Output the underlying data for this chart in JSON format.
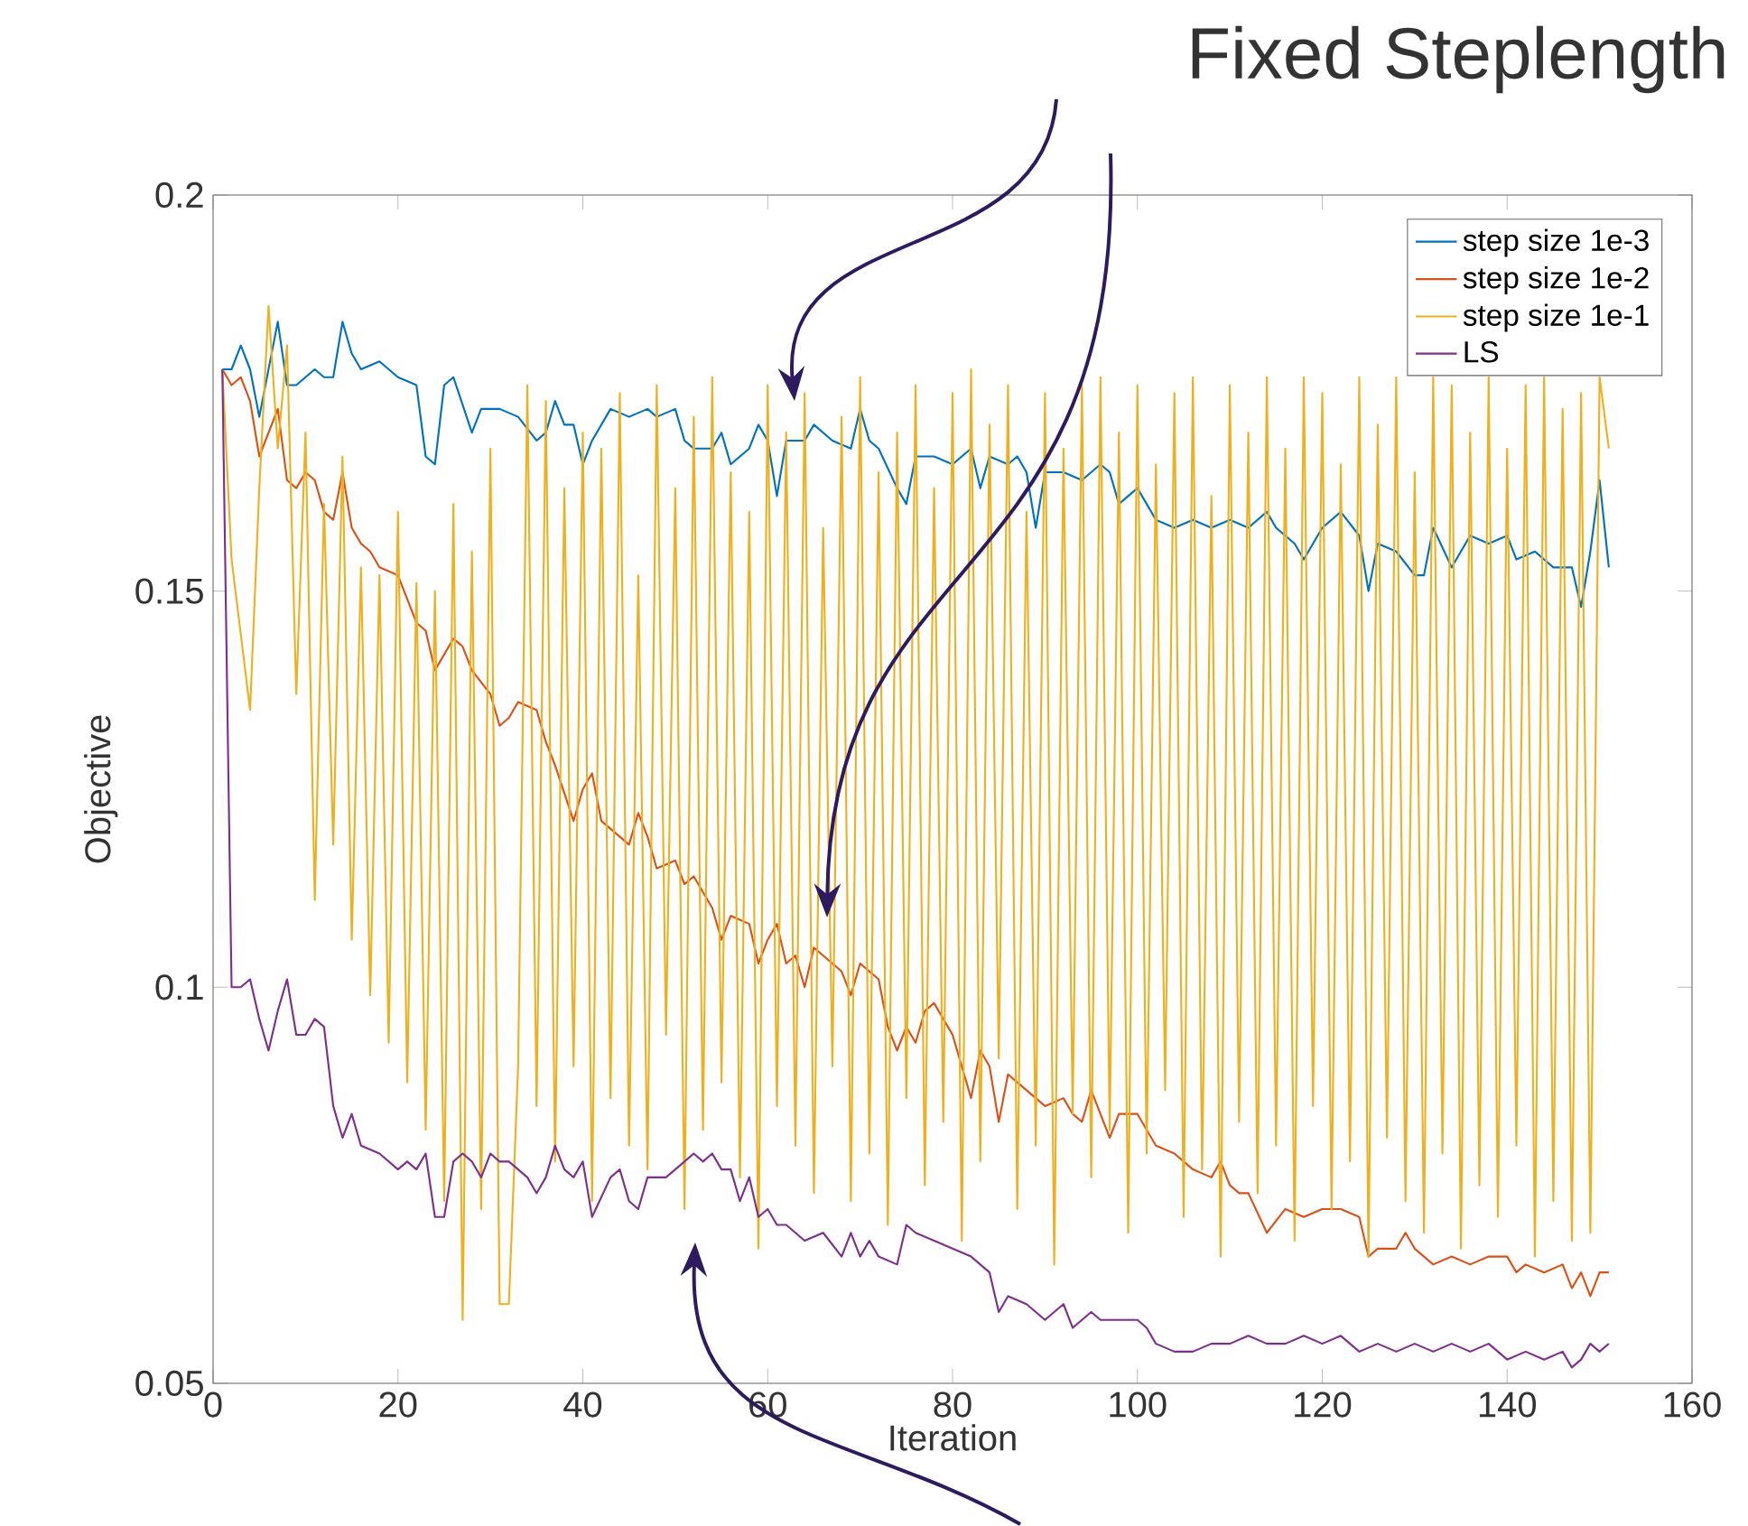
{
  "chart_data": {
    "type": "line",
    "xlabel": "Iteration",
    "ylabel": "Objective",
    "annotations": [
      "Fixed Steplength"
    ],
    "xlim": [
      0,
      160
    ],
    "ylim": [
      0.05,
      0.2
    ],
    "xticks": [
      0,
      20,
      40,
      60,
      80,
      100,
      120,
      140,
      160
    ],
    "yticks": [
      0.05,
      0.1,
      0.15,
      0.2
    ],
    "grid": false,
    "legend": "top right",
    "marker": "none",
    "line_style": "solid",
    "series": [
      {
        "name": "step size 1e-3",
        "color": "#0072bd",
        "x": [
          1,
          2,
          3,
          4,
          5,
          6,
          7,
          8,
          9,
          10,
          11,
          12,
          13,
          14,
          15,
          16,
          18,
          20,
          22,
          23,
          24,
          25,
          26,
          28,
          29,
          31,
          33,
          35,
          36,
          37,
          38,
          39,
          40,
          41,
          43,
          45,
          47,
          48,
          50,
          51,
          52,
          54,
          55,
          56,
          58,
          59,
          60,
          61,
          62,
          64,
          65,
          67,
          69,
          70,
          71,
          72,
          74,
          75,
          76,
          78,
          80,
          82,
          83,
          84,
          86,
          87,
          88,
          89,
          90,
          92,
          94,
          96,
          97,
          98,
          100,
          102,
          104,
          106,
          108,
          110,
          112,
          114,
          115,
          117,
          118,
          120,
          122,
          124,
          125,
          126,
          128,
          130,
          131,
          132,
          134,
          136,
          138,
          140,
          141,
          143,
          145,
          147,
          148,
          149,
          150,
          151
        ],
        "values": [
          0.178,
          0.178,
          0.181,
          0.178,
          0.172,
          0.178,
          0.184,
          0.176,
          0.176,
          0.177,
          0.178,
          0.177,
          0.177,
          0.184,
          0.18,
          0.178,
          0.179,
          0.177,
          0.176,
          0.167,
          0.166,
          0.176,
          0.177,
          0.17,
          0.173,
          0.173,
          0.172,
          0.169,
          0.17,
          0.174,
          0.171,
          0.171,
          0.166,
          0.169,
          0.173,
          0.172,
          0.173,
          0.172,
          0.173,
          0.169,
          0.168,
          0.168,
          0.17,
          0.166,
          0.168,
          0.171,
          0.169,
          0.162,
          0.169,
          0.169,
          0.171,
          0.169,
          0.168,
          0.173,
          0.169,
          0.168,
          0.163,
          0.161,
          0.167,
          0.167,
          0.166,
          0.168,
          0.163,
          0.167,
          0.166,
          0.167,
          0.165,
          0.158,
          0.165,
          0.165,
          0.164,
          0.166,
          0.165,
          0.161,
          0.163,
          0.159,
          0.158,
          0.159,
          0.158,
          0.159,
          0.158,
          0.16,
          0.158,
          0.156,
          0.154,
          0.158,
          0.16,
          0.157,
          0.15,
          0.156,
          0.155,
          0.152,
          0.152,
          0.158,
          0.153,
          0.157,
          0.156,
          0.157,
          0.154,
          0.155,
          0.153,
          0.153,
          0.148,
          0.155,
          0.164,
          0.153
        ]
      },
      {
        "name": "step size 1e-2",
        "color": "#d95319",
        "x": [
          1,
          2,
          3,
          4,
          5,
          6,
          7,
          8,
          9,
          10,
          11,
          12,
          13,
          14,
          15,
          16,
          17,
          18,
          20,
          22,
          23,
          24,
          26,
          27,
          28,
          30,
          31,
          32,
          33,
          35,
          36,
          37,
          39,
          40,
          41,
          42,
          44,
          45,
          46,
          47,
          48,
          50,
          51,
          52,
          54,
          55,
          56,
          58,
          59,
          60,
          61,
          62,
          63,
          64,
          65,
          67,
          68,
          69,
          70,
          72,
          73,
          74,
          75,
          76,
          77,
          78,
          80,
          82,
          83,
          84,
          85,
          86,
          87,
          88,
          90,
          92,
          93,
          94,
          95,
          96,
          97,
          98,
          100,
          101,
          102,
          104,
          106,
          108,
          109,
          110,
          111,
          112,
          114,
          116,
          118,
          120,
          122,
          124,
          125,
          126,
          128,
          129,
          130,
          132,
          134,
          136,
          138,
          140,
          141,
          142,
          144,
          146,
          147,
          148,
          149,
          150,
          151
        ],
        "values": [
          0.178,
          0.176,
          0.177,
          0.174,
          0.167,
          0.17,
          0.173,
          0.164,
          0.163,
          0.165,
          0.164,
          0.16,
          0.159,
          0.165,
          0.158,
          0.156,
          0.155,
          0.153,
          0.152,
          0.146,
          0.145,
          0.14,
          0.144,
          0.143,
          0.14,
          0.137,
          0.133,
          0.134,
          0.136,
          0.135,
          0.131,
          0.128,
          0.121,
          0.125,
          0.127,
          0.121,
          0.119,
          0.118,
          0.122,
          0.119,
          0.115,
          0.116,
          0.113,
          0.114,
          0.11,
          0.106,
          0.109,
          0.108,
          0.103,
          0.106,
          0.108,
          0.103,
          0.104,
          0.1,
          0.105,
          0.103,
          0.102,
          0.099,
          0.103,
          0.101,
          0.095,
          0.092,
          0.095,
          0.093,
          0.097,
          0.098,
          0.094,
          0.086,
          0.092,
          0.09,
          0.083,
          0.089,
          0.088,
          0.087,
          0.085,
          0.086,
          0.084,
          0.083,
          0.087,
          0.084,
          0.081,
          0.084,
          0.084,
          0.082,
          0.08,
          0.079,
          0.077,
          0.076,
          0.078,
          0.075,
          0.074,
          0.074,
          0.069,
          0.072,
          0.071,
          0.072,
          0.072,
          0.071,
          0.066,
          0.067,
          0.067,
          0.069,
          0.067,
          0.065,
          0.066,
          0.065,
          0.066,
          0.066,
          0.064,
          0.065,
          0.064,
          0.065,
          0.062,
          0.064,
          0.061,
          0.064,
          0.064
        ]
      },
      {
        "name": "step size 1e-1",
        "color": "#edb120",
        "x": [
          1,
          2,
          4,
          5,
          6,
          7,
          8,
          9,
          10,
          11,
          12,
          13,
          14,
          15,
          16,
          17,
          18,
          19,
          20,
          21,
          22,
          23,
          24,
          25,
          26,
          27,
          28,
          29,
          30,
          31,
          32,
          33,
          34,
          35,
          36,
          37,
          38,
          39,
          40,
          41,
          42,
          43,
          44,
          45,
          46,
          47,
          48,
          49,
          50,
          51,
          52,
          53,
          54,
          55,
          56,
          57,
          58,
          59,
          60,
          61,
          62,
          63,
          64,
          65,
          66,
          67,
          68,
          69,
          70,
          71,
          72,
          73,
          74,
          75,
          76,
          77,
          78,
          79,
          80,
          81,
          82,
          83,
          84,
          85,
          86,
          87,
          88,
          89,
          90,
          91,
          92,
          93,
          94,
          95,
          96,
          97,
          98,
          99,
          100,
          101,
          102,
          103,
          104,
          105,
          106,
          107,
          108,
          109,
          110,
          111,
          112,
          113,
          114,
          115,
          116,
          117,
          118,
          119,
          120,
          121,
          122,
          123,
          124,
          125,
          126,
          127,
          128,
          129,
          130,
          131,
          132,
          133,
          134,
          135,
          136,
          137,
          138,
          139,
          140,
          141,
          142,
          143,
          144,
          145,
          146,
          147,
          148,
          149,
          150,
          151
        ],
        "values": [
          0.178,
          0.154,
          0.135,
          0.163,
          0.186,
          0.168,
          0.181,
          0.137,
          0.17,
          0.111,
          0.161,
          0.118,
          0.167,
          0.106,
          0.153,
          0.099,
          0.152,
          0.093,
          0.16,
          0.088,
          0.151,
          0.082,
          0.15,
          0.073,
          0.161,
          0.058,
          0.155,
          0.072,
          0.168,
          0.06,
          0.06,
          0.09,
          0.176,
          0.085,
          0.174,
          0.078,
          0.163,
          0.09,
          0.17,
          0.073,
          0.168,
          0.086,
          0.175,
          0.08,
          0.152,
          0.077,
          0.176,
          0.094,
          0.163,
          0.072,
          0.172,
          0.082,
          0.177,
          0.088,
          0.165,
          0.076,
          0.16,
          0.067,
          0.176,
          0.085,
          0.17,
          0.08,
          0.175,
          0.074,
          0.158,
          0.09,
          0.172,
          0.073,
          0.177,
          0.079,
          0.165,
          0.07,
          0.17,
          0.086,
          0.176,
          0.075,
          0.163,
          0.083,
          0.175,
          0.068,
          0.178,
          0.078,
          0.171,
          0.091,
          0.176,
          0.072,
          0.16,
          0.08,
          0.175,
          0.065,
          0.168,
          0.084,
          0.176,
          0.076,
          0.177,
          0.082,
          0.17,
          0.069,
          0.176,
          0.079,
          0.166,
          0.087,
          0.175,
          0.071,
          0.177,
          0.077,
          0.162,
          0.066,
          0.176,
          0.083,
          0.17,
          0.074,
          0.177,
          0.08,
          0.168,
          0.068,
          0.177,
          0.085,
          0.175,
          0.072,
          0.166,
          0.078,
          0.177,
          0.066,
          0.171,
          0.081,
          0.177,
          0.073,
          0.165,
          0.069,
          0.177,
          0.079,
          0.176,
          0.067,
          0.17,
          0.075,
          0.177,
          0.071,
          0.168,
          0.08,
          0.176,
          0.066,
          0.177,
          0.073,
          0.173,
          0.068,
          0.175,
          0.069,
          0.177,
          0.168
        ]
      },
      {
        "name": "LS",
        "color": "#7e2f8e",
        "x": [
          1,
          2,
          3,
          4,
          5,
          6,
          7,
          8,
          9,
          10,
          11,
          12,
          13,
          14,
          15,
          16,
          18,
          20,
          21,
          22,
          23,
          24,
          25,
          26,
          27,
          28,
          29,
          30,
          31,
          32,
          33,
          34,
          35,
          36,
          37,
          38,
          39,
          40,
          41,
          43,
          44,
          45,
          46,
          47,
          48,
          49,
          50,
          52,
          53,
          54,
          55,
          56,
          57,
          58,
          59,
          60,
          61,
          62,
          64,
          66,
          68,
          69,
          70,
          71,
          72,
          74,
          75,
          76,
          78,
          80,
          82,
          84,
          85,
          86,
          88,
          90,
          91,
          92,
          93,
          95,
          96,
          98,
          100,
          101,
          102,
          104,
          106,
          108,
          110,
          112,
          114,
          116,
          118,
          120,
          122,
          124,
          126,
          128,
          130,
          132,
          134,
          136,
          138,
          140,
          142,
          144,
          146,
          147,
          148,
          149,
          150,
          151
        ],
        "values": [
          0.178,
          0.1,
          0.1,
          0.101,
          0.096,
          0.092,
          0.097,
          0.101,
          0.094,
          0.094,
          0.096,
          0.095,
          0.085,
          0.081,
          0.084,
          0.08,
          0.079,
          0.077,
          0.078,
          0.077,
          0.079,
          0.071,
          0.071,
          0.078,
          0.079,
          0.078,
          0.076,
          0.079,
          0.078,
          0.078,
          0.077,
          0.076,
          0.074,
          0.076,
          0.08,
          0.077,
          0.076,
          0.078,
          0.071,
          0.076,
          0.077,
          0.073,
          0.072,
          0.076,
          0.076,
          0.076,
          0.077,
          0.079,
          0.078,
          0.079,
          0.077,
          0.077,
          0.073,
          0.076,
          0.071,
          0.072,
          0.07,
          0.07,
          0.068,
          0.069,
          0.066,
          0.069,
          0.066,
          0.068,
          0.066,
          0.065,
          0.07,
          0.069,
          0.068,
          0.067,
          0.066,
          0.064,
          0.059,
          0.061,
          0.06,
          0.058,
          0.059,
          0.06,
          0.057,
          0.059,
          0.058,
          0.058,
          0.058,
          0.057,
          0.055,
          0.054,
          0.054,
          0.055,
          0.055,
          0.056,
          0.055,
          0.055,
          0.056,
          0.055,
          0.056,
          0.054,
          0.055,
          0.054,
          0.055,
          0.054,
          0.055,
          0.054,
          0.055,
          0.053,
          0.054,
          0.053,
          0.054,
          0.052,
          0.053,
          0.055,
          0.054,
          0.055
        ]
      }
    ]
  }
}
